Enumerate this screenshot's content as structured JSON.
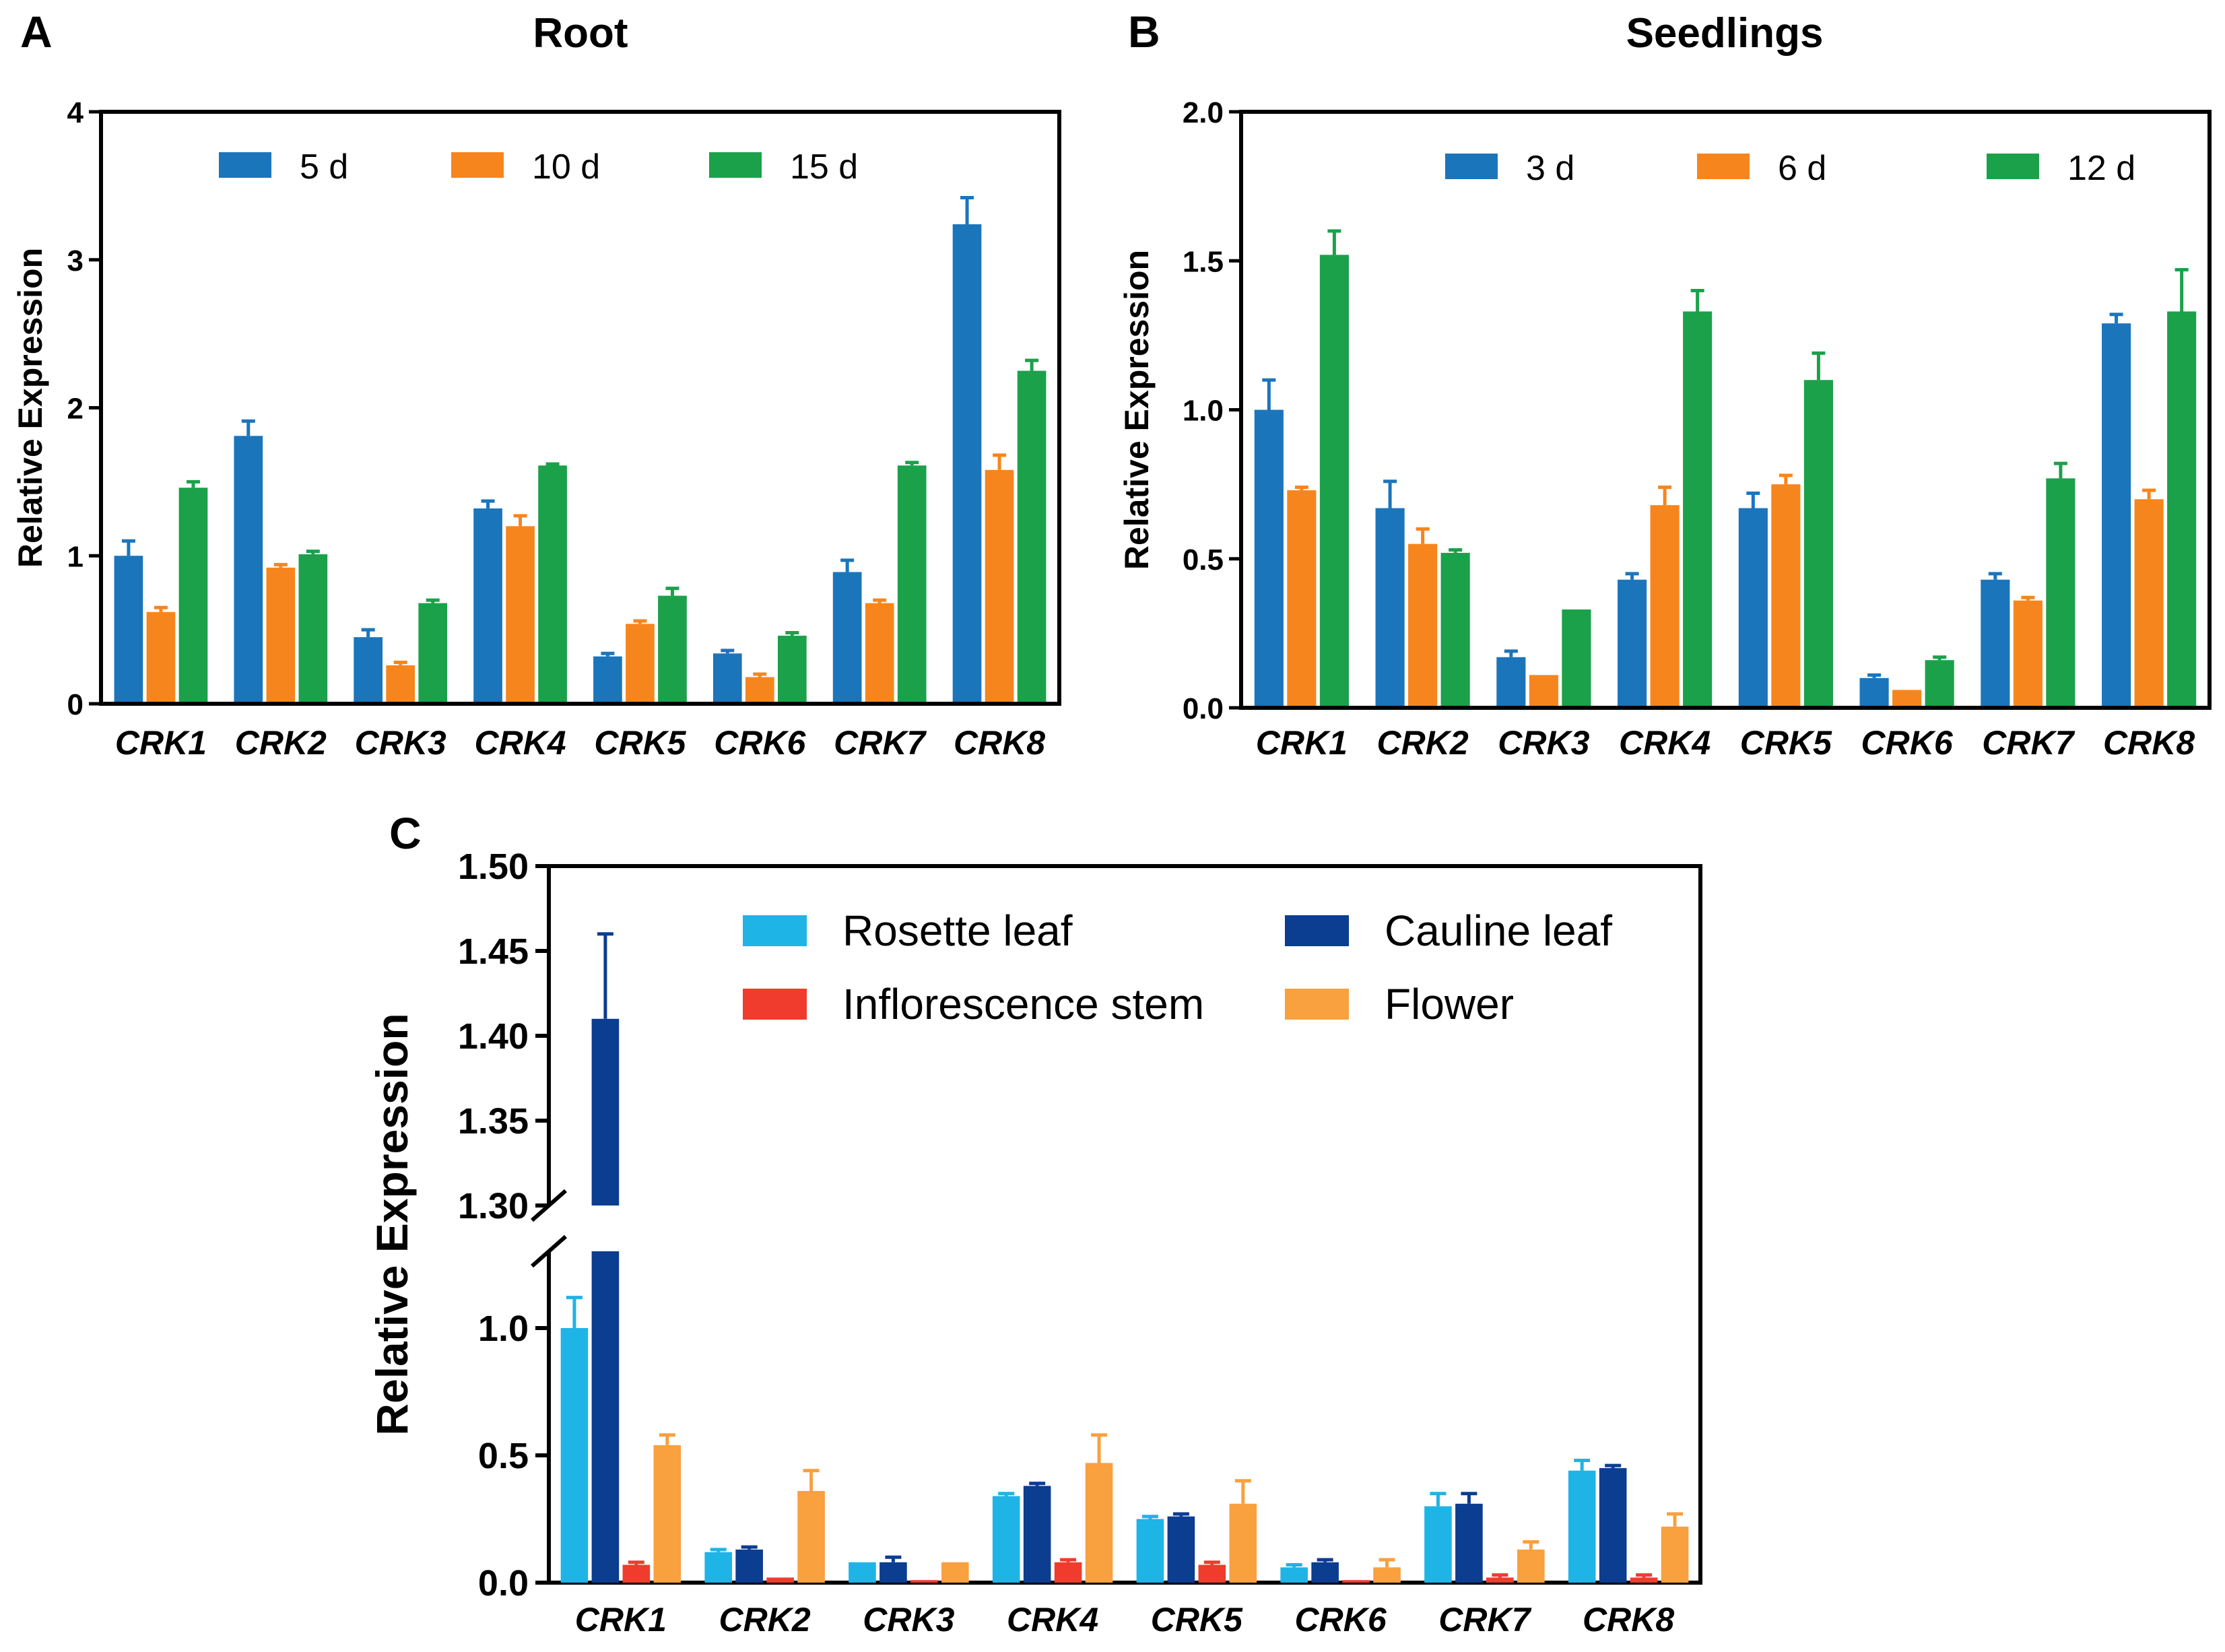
{
  "chart_data": [
    {
      "id": "A",
      "type": "bar",
      "panel_label": "A",
      "title": "Root",
      "ylabel": "Relative Expression",
      "xlabel": "",
      "ylim": [
        0,
        4
      ],
      "yticks": [
        "0",
        "1",
        "2",
        "3",
        "4"
      ],
      "categories": [
        "CRK1",
        "CRK2",
        "CRK3",
        "CRK4",
        "CRK5",
        "CRK6",
        "CRK7",
        "CRK8"
      ],
      "legend_position": "top",
      "series": [
        {
          "name": "5 d",
          "color": "#1b75bb",
          "values": [
            1.0,
            1.81,
            0.45,
            1.32,
            0.32,
            0.34,
            0.89,
            3.24
          ],
          "errors": [
            0.1,
            0.1,
            0.05,
            0.05,
            0.02,
            0.02,
            0.08,
            0.18
          ]
        },
        {
          "name": "10 d",
          "color": "#f7851d",
          "values": [
            0.62,
            0.92,
            0.26,
            1.2,
            0.54,
            0.18,
            0.68,
            1.58
          ],
          "errors": [
            0.03,
            0.02,
            0.02,
            0.07,
            0.02,
            0.02,
            0.02,
            0.1
          ]
        },
        {
          "name": "15 d",
          "color": "#1ba14a",
          "values": [
            1.46,
            1.01,
            0.68,
            1.61,
            0.73,
            0.46,
            1.61,
            2.25
          ],
          "errors": [
            0.04,
            0.02,
            0.02,
            0.01,
            0.05,
            0.02,
            0.02,
            0.07
          ]
        }
      ]
    },
    {
      "id": "B",
      "type": "bar",
      "panel_label": "B",
      "title": "Seedlings",
      "ylabel": "Relative Expression",
      "xlabel": "",
      "ylim": [
        0,
        2.0
      ],
      "yticks": [
        "0.0",
        "0.5",
        "1.0",
        "1.5",
        "2.0"
      ],
      "categories": [
        "CRK1",
        "CRK2",
        "CRK3",
        "CRK4",
        "CRK5",
        "CRK6",
        "CRK7",
        "CRK8"
      ],
      "legend_position": "top",
      "series": [
        {
          "name": "3 d",
          "color": "#1b75bb",
          "values": [
            1.0,
            0.67,
            0.17,
            0.43,
            0.67,
            0.1,
            0.43,
            1.29
          ],
          "errors": [
            0.1,
            0.09,
            0.02,
            0.02,
            0.05,
            0.01,
            0.02,
            0.03
          ]
        },
        {
          "name": "6 d",
          "color": "#f7851d",
          "values": [
            0.73,
            0.55,
            0.11,
            0.68,
            0.75,
            0.06,
            0.36,
            0.7
          ],
          "errors": [
            0.01,
            0.05,
            0.0,
            0.06,
            0.03,
            0.0,
            0.01,
            0.03
          ]
        },
        {
          "name": "12 d",
          "color": "#1ba14a",
          "values": [
            1.52,
            0.52,
            0.33,
            1.33,
            1.1,
            0.16,
            0.77,
            1.33
          ],
          "errors": [
            0.08,
            0.01,
            0.0,
            0.07,
            0.09,
            0.01,
            0.05,
            0.14
          ]
        }
      ]
    },
    {
      "id": "C",
      "type": "bar",
      "panel_label": "C",
      "title": "",
      "ylabel": "Relative Expression",
      "xlabel": "",
      "ylim": [
        0,
        1.5
      ],
      "axis_break": [
        1.25,
        1.3
      ],
      "yticks_lower": [
        "0.0",
        "0.5",
        "1.0"
      ],
      "yticks_upper": [
        "1.30",
        "1.35",
        "1.40",
        "1.45",
        "1.50"
      ],
      "categories": [
        "CRK1",
        "CRK2",
        "CRK3",
        "CRK4",
        "CRK5",
        "CRK6",
        "CRK7",
        "CRK8"
      ],
      "legend_position": "top-right",
      "series": [
        {
          "name": "Rosette leaf",
          "color": "#1fb4e6",
          "values": [
            1.0,
            0.12,
            0.08,
            0.34,
            0.25,
            0.06,
            0.3,
            0.44
          ],
          "errors": [
            0.12,
            0.01,
            0.0,
            0.01,
            0.01,
            0.01,
            0.05,
            0.04
          ]
        },
        {
          "name": "Cauline leaf",
          "color": "#0b3d91",
          "values": [
            1.41,
            0.13,
            0.08,
            0.38,
            0.26,
            0.08,
            0.31,
            0.45
          ],
          "errors": [
            0.05,
            0.01,
            0.02,
            0.01,
            0.01,
            0.01,
            0.04,
            0.01
          ]
        },
        {
          "name": "Inflorescence stem",
          "color": "#ef3c2d",
          "values": [
            0.07,
            0.02,
            0.01,
            0.08,
            0.07,
            0.01,
            0.02,
            0.02
          ],
          "errors": [
            0.01,
            0.0,
            0.0,
            0.01,
            0.01,
            0.0,
            0.01,
            0.01
          ]
        },
        {
          "name": "Flower",
          "color": "#f9a03f",
          "values": [
            0.54,
            0.36,
            0.08,
            0.47,
            0.31,
            0.06,
            0.13,
            0.22
          ],
          "errors": [
            0.04,
            0.08,
            0.0,
            0.11,
            0.09,
            0.03,
            0.03,
            0.05
          ]
        }
      ]
    }
  ]
}
